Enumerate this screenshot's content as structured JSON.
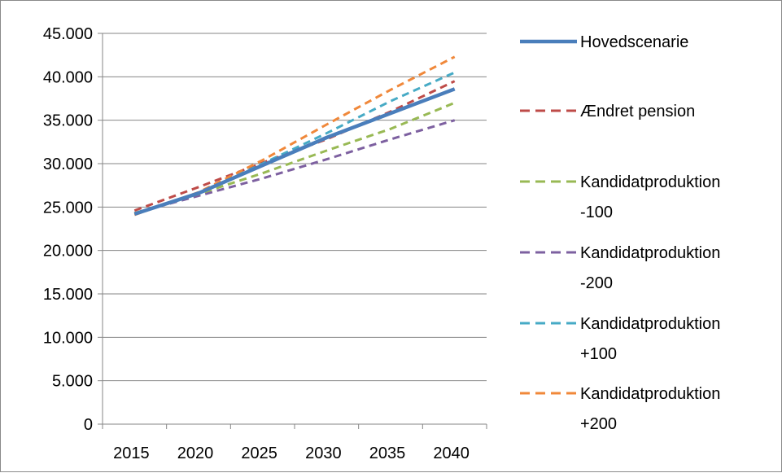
{
  "chart_data": {
    "type": "line",
    "title": "",
    "xlabel": "",
    "ylabel": "",
    "x": [
      2013,
      2018,
      2023,
      2028,
      2033,
      2038
    ],
    "x_ticks": [
      "2015",
      "2020",
      "2025",
      "2030",
      "2035",
      "2040"
    ],
    "y_ticks": [
      "0",
      "5.000",
      "10.000",
      "15.000",
      "20.000",
      "25.000",
      "30.000",
      "35.000",
      "40.000",
      "45.000"
    ],
    "ylim": [
      0,
      45000
    ],
    "grid": true,
    "legend_position": "right",
    "series": [
      {
        "name": "Hovedscenarie",
        "label_lines": [
          "Hovedscenarie"
        ],
        "color": "#4a7ebb",
        "dash": "solid",
        "values": [
          24200,
          26600,
          29800,
          33000,
          35800,
          38600
        ]
      },
      {
        "name": "Ændret pension",
        "label_lines": [
          "Ændret pension"
        ],
        "color": "#be4b48",
        "dash": "dashed",
        "values": [
          24600,
          27300,
          30100,
          32800,
          36000,
          39500
        ]
      },
      {
        "name": "Kandidatproduktion -100",
        "label_lines": [
          "Kandidatproduktion",
          "-100"
        ],
        "color": "#98b954",
        "dash": "dashed",
        "values": [
          24300,
          26500,
          28900,
          31500,
          34000,
          37000
        ]
      },
      {
        "name": "Kandidatproduktion -200",
        "label_lines": [
          "Kandidatproduktion",
          "-200"
        ],
        "color": "#7d60a0",
        "dash": "dashed",
        "values": [
          24300,
          26300,
          28300,
          30500,
          32800,
          35000
        ]
      },
      {
        "name": "Kandidatproduktion +100",
        "label_lines": [
          "Kandidatproduktion",
          "+100"
        ],
        "color": "#46aac5",
        "dash": "dashed",
        "values": [
          24200,
          26600,
          30000,
          33500,
          37200,
          40500
        ]
      },
      {
        "name": "Kandidatproduktion +200",
        "label_lines": [
          "Kandidatproduktion",
          "+200"
        ],
        "color": "#f0883a",
        "dash": "dashed",
        "values": [
          24100,
          26700,
          30400,
          34500,
          38500,
          42300
        ]
      }
    ]
  }
}
